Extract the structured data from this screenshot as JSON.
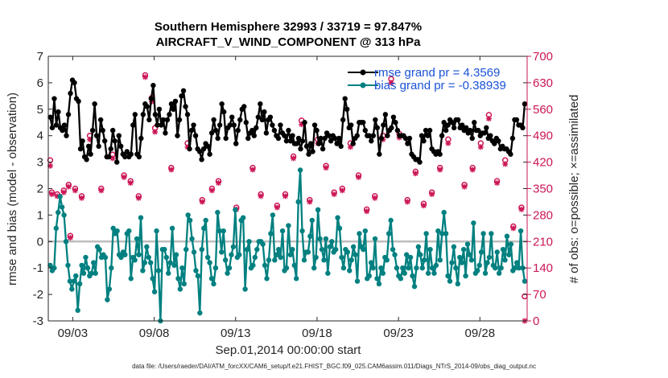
{
  "chart_data": {
    "type": "line",
    "title_line1": "Southern Hemisphere 32993 / 33719 = 97.847%",
    "title_line2": "AIRCRAFT_V_WIND_COMPONENT @ 313 hPa",
    "ylabel_left": "rmse and bias (model - observation)",
    "ylabel_right": "# of obs: o=possible; ×=assimilated",
    "xlabel": "Sep.01,2014 00:00:00 start",
    "footer": "data file: /Users/raeder/DAI/ATM_forcXX/CAM6_setup/f.e21.FHIST_BGC.f09_025.CAM6assim.011/Diags_NTrS_2014-09/obs_diag_output.nc",
    "xlim": [
      1.5,
      30.9
    ],
    "ylim_left": [
      -3,
      7
    ],
    "ylim_right": [
      0,
      700
    ],
    "x_ticks": [
      3,
      8,
      13,
      18,
      23,
      28
    ],
    "x_tick_labels": [
      "09/03",
      "09/08",
      "09/13",
      "09/18",
      "09/23",
      "09/28"
    ],
    "y_ticks_left": [
      -3,
      -2,
      -1,
      0,
      1,
      2,
      3,
      4,
      5,
      6,
      7
    ],
    "y_ticks_right": [
      0,
      70,
      140,
      210,
      280,
      350,
      420,
      490,
      560,
      630,
      700
    ],
    "colors": {
      "rmse": "#000000",
      "bias": "#008080",
      "obs": "#cc1657",
      "zero": "#bdbdbd",
      "axis": "#262626",
      "legend_text": "#1a52d6"
    },
    "legend": [
      {
        "key": "rmse",
        "label": "rmse grand pr = 4.3569"
      },
      {
        "key": "bias",
        "label": "bias grand pr = -0.38939"
      }
    ],
    "rmse": [
      4.7,
      4.3,
      5.4,
      4.4,
      4.9,
      4.3,
      4.2,
      4.4,
      4.0,
      4.8,
      5.6,
      6.1,
      6.0,
      5.4,
      5.3,
      3.5,
      3.8,
      3.2,
      3.1,
      3.6,
      3.3,
      4.2,
      5.2,
      4.0,
      3.6,
      4.6,
      4.2,
      3.8,
      3.2,
      3.2,
      3.5,
      4.2,
      3.8,
      3.0,
      4.0,
      3.6,
      3.3,
      3.2,
      3.4,
      3.2,
      3.3,
      4.4,
      4.8,
      3.3,
      3.2,
      3.9,
      4.8,
      5.2,
      5.1,
      4.6,
      5.4,
      5.9,
      4.8,
      4.4,
      5.0,
      4.4,
      4.6,
      4.1,
      4.6,
      4.8,
      5.2,
      5.0,
      5.3,
      4.0,
      4.6,
      5.5,
      5.7,
      5.1,
      4.8,
      3.5,
      4.2,
      4.4,
      4.0,
      3.5,
      3.4,
      3.1,
      3.5,
      3.7,
      3.6,
      3.3,
      4.1,
      4.6,
      4.2,
      3.9,
      4.4,
      5.2,
      4.9,
      3.9,
      4.3,
      4.4,
      4.7,
      4.4,
      3.7,
      4.2,
      4.6,
      5.0,
      5.1,
      4.5,
      3.9,
      4.1,
      4.2,
      4.0,
      4.3,
      4.7,
      5.2,
      4.6,
      4.9,
      4.1,
      4.6,
      4.7,
      4.4,
      4.2,
      4.0,
      3.9,
      4.4,
      4.1,
      4.0,
      3.8,
      4.2,
      3.8,
      4.0,
      3.7,
      3.7,
      3.9,
      3.5,
      3.8,
      4.5,
      3.6,
      3.3,
      3.7,
      3.4,
      4.4,
      4.2,
      3.7,
      3.9,
      3.5,
      3.9,
      4.1,
      4.0,
      3.8,
      4.0,
      3.9,
      3.7,
      3.9,
      3.6,
      4.6,
      5.4,
      5.0,
      4.3,
      4.4,
      3.7,
      3.9,
      4.0,
      4.5,
      4.5,
      4.5,
      4.2,
      4.0,
      4.0,
      3.8,
      4.0,
      4.6,
      4.3,
      3.3,
      3.9,
      4.4,
      4.8,
      4.0,
      4.2,
      4.3,
      4.7,
      4.5,
      4.2,
      4.0,
      4.0,
      4.0,
      3.9,
      3.7,
      3.9,
      3.3,
      3.2,
      3.1,
      3.1,
      3.0,
      4.0,
      3.8,
      4.2,
      4.0,
      4.2,
      3.5,
      3.4,
      3.3,
      3.4,
      3.3,
      4.0,
      4.5,
      4.2,
      4.4,
      4.6,
      4.5,
      4.3,
      4.6,
      4.6,
      4.3,
      4.4,
      4.2,
      4.3,
      4.1,
      4.2,
      3.9,
      4.5,
      4.2,
      4.2,
      4.0,
      4.1,
      4.1,
      4.3,
      3.9,
      4.0,
      3.8,
      3.7,
      3.9,
      3.8,
      3.5,
      3.6,
      3.5,
      3.5,
      3.4,
      3.3,
      3.9,
      4.6,
      4.6,
      4.4,
      4.4,
      4.3,
      5.2
    ],
    "bias": [
      -0.9,
      -1.1,
      -1.0,
      0.5,
      1.1,
      1.7,
      1.3,
      1.0,
      0.0,
      -0.9,
      -1.5,
      -1.8,
      -1.5,
      -1.3,
      -2.6,
      -1.6,
      -0.9,
      -1.2,
      -0.6,
      -1.0,
      -1.3,
      -1.2,
      -0.8,
      -1.2,
      -0.2,
      -0.3,
      -0.6,
      -0.5,
      -0.6,
      -2.2,
      -1.8,
      -1.0,
      0.5,
      0.3,
      0.4,
      -0.5,
      -0.6,
      -0.4,
      -0.5,
      0.3,
      0.4,
      -1.4,
      -0.6,
      -0.7,
      0.1,
      -0.5,
      0.9,
      -1.1,
      -0.8,
      -0.2,
      -0.6,
      -0.8,
      -1.4,
      -1.9,
      0.4,
      -1.1,
      -3.0,
      -0.3,
      -0.3,
      -0.6,
      -1.2,
      -0.8,
      0.5,
      -0.9,
      -0.5,
      -1.4,
      -1.8,
      -1.0,
      -1.6,
      -0.3,
      1.0,
      0.8,
      0.1,
      -0.4,
      -1.1,
      -1.3,
      -2.7,
      -0.3,
      0.5,
      0.8,
      -0.6,
      -0.8,
      -1.4,
      -1.6,
      -1.0,
      1.1,
      0.4,
      -0.4,
      0.4,
      -0.7,
      -1.2,
      -1.0,
      -0.5,
      -0.2,
      1.2,
      -0.6,
      -0.5,
      0.8,
      0.9,
      -1.8,
      -0.3,
      0.0,
      -1.0,
      -0.9,
      -0.6,
      -0.3,
      0.0,
      0.0,
      -0.1,
      -0.9,
      -1.4,
      -0.7,
      0.3,
      1.0,
      -0.7,
      -0.5,
      -0.3,
      -0.6,
      0.4,
      -1.1,
      -1.0,
      0.6,
      -0.5,
      -0.3,
      -0.9,
      -1.4,
      1.5,
      2.7,
      0.4,
      -0.7,
      -0.4,
      -0.4,
      0.2,
      0.8,
      -1.0,
      -0.6,
      1.2,
      0.1,
      -0.3,
      -0.7,
      0.1,
      -1.2,
      -0.2,
      0.0,
      -0.4,
      -0.3,
      0.9,
      0.5,
      -0.6,
      -1.0,
      -0.3,
      -0.4,
      -1.1,
      -0.7,
      -0.2,
      -0.5,
      -1.5,
      0.3,
      -0.2,
      -0.3,
      0.4,
      -1.4,
      -1.3,
      -0.8,
      -1.0,
      0.1,
      -1.4,
      -1.6,
      -1.0,
      -1.2,
      -0.6,
      -0.7,
      0.3,
      0.8,
      -0.3,
      -0.5,
      -1.0,
      -1.3,
      -1.4,
      -1.0,
      -1.2,
      -0.5,
      -1.0,
      -0.6,
      -1.3,
      -1.7,
      -1.0,
      -0.2,
      -0.5,
      -1.0,
      -0.7,
      0.3,
      -1.2,
      -0.3,
      -1.0,
      -1.2,
      -0.9,
      0.4,
      -0.7,
      0.3,
      1.1,
      0.3,
      -1.3,
      -1.5,
      -0.8,
      -0.2,
      -1.0,
      -1.6,
      -0.6,
      -0.8,
      -0.3,
      -1.3,
      -0.1,
      -0.5,
      -0.7,
      0.7,
      -1.2,
      -1.1,
      -0.9,
      -0.4,
      0.3,
      -1.2,
      -0.8,
      -0.6,
      0.3,
      -0.9,
      -1.0,
      -0.4,
      -1.2,
      -1.0,
      -0.3,
      -0.7,
      0.2,
      -0.5,
      -0.1,
      -1.1,
      -1.0,
      -0.8,
      -1.0,
      0.4,
      -1.0,
      -1.5
    ],
    "obs_possible": [
      [
        1.62,
        425
      ],
      [
        1.72,
        340
      ],
      [
        2.05,
        335
      ],
      [
        2.45,
        345
      ],
      [
        2.75,
        360
      ],
      [
        2.85,
        225
      ],
      [
        3.15,
        350
      ],
      [
        3.55,
        330
      ],
      [
        4.05,
        490
      ],
      [
        4.75,
        350
      ],
      [
        5.45,
        440
      ],
      [
        6.15,
        385
      ],
      [
        6.55,
        370
      ],
      [
        7.05,
        330
      ],
      [
        7.45,
        650
      ],
      [
        7.85,
        590
      ],
      [
        8.05,
        510
      ],
      [
        9.05,
        405
      ],
      [
        10.05,
        470
      ],
      [
        10.95,
        320
      ],
      [
        11.55,
        350
      ],
      [
        11.95,
        370
      ],
      [
        13.05,
        300
      ],
      [
        14.05,
        405
      ],
      [
        14.55,
        335
      ],
      [
        15.55,
        305
      ],
      [
        16.05,
        335
      ],
      [
        16.55,
        435
      ],
      [
        17.05,
        530
      ],
      [
        17.55,
        320
      ],
      [
        18.05,
        480
      ],
      [
        18.55,
        410
      ],
      [
        19.05,
        340
      ],
      [
        19.55,
        350
      ],
      [
        20.05,
        470
      ],
      [
        20.55,
        385
      ],
      [
        21.05,
        295
      ],
      [
        21.55,
        330
      ],
      [
        22.05,
        490
      ],
      [
        22.55,
        640
      ],
      [
        23.05,
        495
      ],
      [
        23.55,
        320
      ],
      [
        24.05,
        395
      ],
      [
        24.55,
        310
      ],
      [
        25.05,
        340
      ],
      [
        25.55,
        405
      ],
      [
        26.05,
        480
      ],
      [
        27.05,
        360
      ],
      [
        27.55,
        405
      ],
      [
        28.05,
        470
      ],
      [
        28.55,
        545
      ],
      [
        29.05,
        370
      ],
      [
        29.55,
        425
      ],
      [
        30.05,
        250
      ],
      [
        30.55,
        300
      ],
      [
        30.75,
        65
      ]
    ],
    "obs_assimilated": [
      [
        1.62,
        410
      ],
      [
        1.72,
        335
      ],
      [
        2.05,
        330
      ],
      [
        2.45,
        340
      ],
      [
        2.75,
        355
      ],
      [
        2.85,
        220
      ],
      [
        3.15,
        345
      ],
      [
        3.55,
        325
      ],
      [
        4.05,
        480
      ],
      [
        4.75,
        345
      ],
      [
        5.45,
        430
      ],
      [
        6.15,
        380
      ],
      [
        6.55,
        365
      ],
      [
        7.05,
        325
      ],
      [
        7.45,
        645
      ],
      [
        7.85,
        580
      ],
      [
        8.05,
        500
      ],
      [
        9.05,
        400
      ],
      [
        10.05,
        460
      ],
      [
        10.95,
        315
      ],
      [
        11.55,
        345
      ],
      [
        11.95,
        365
      ],
      [
        13.05,
        295
      ],
      [
        14.05,
        400
      ],
      [
        14.55,
        330
      ],
      [
        15.55,
        300
      ],
      [
        16.05,
        330
      ],
      [
        16.55,
        430
      ],
      [
        17.05,
        520
      ],
      [
        17.55,
        315
      ],
      [
        18.05,
        470
      ],
      [
        18.55,
        405
      ],
      [
        19.05,
        335
      ],
      [
        19.55,
        345
      ],
      [
        20.05,
        460
      ],
      [
        20.55,
        380
      ],
      [
        21.05,
        290
      ],
      [
        21.55,
        325
      ],
      [
        22.05,
        480
      ],
      [
        22.55,
        630
      ],
      [
        23.05,
        485
      ],
      [
        23.55,
        315
      ],
      [
        24.05,
        390
      ],
      [
        24.55,
        305
      ],
      [
        25.05,
        335
      ],
      [
        25.55,
        400
      ],
      [
        26.05,
        470
      ],
      [
        27.05,
        355
      ],
      [
        27.55,
        400
      ],
      [
        28.05,
        460
      ],
      [
        28.55,
        535
      ],
      [
        29.05,
        365
      ],
      [
        29.55,
        415
      ],
      [
        30.05,
        245
      ],
      [
        30.55,
        295
      ],
      [
        30.75,
        0
      ]
    ]
  }
}
